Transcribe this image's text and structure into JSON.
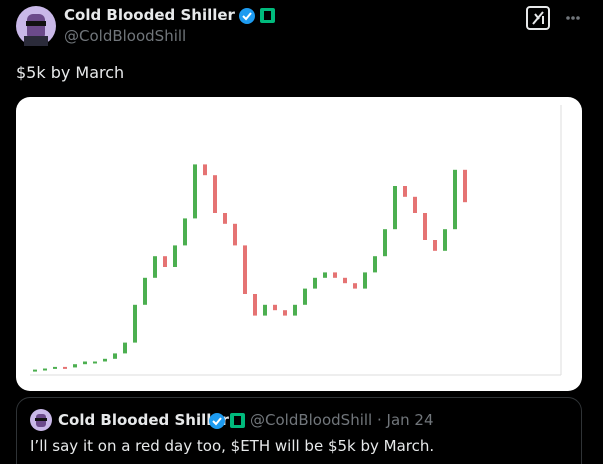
{
  "tweet": {
    "author": "Cold Blooded Shiller",
    "handle": "@ColdBloodShill",
    "text": "$5k by March",
    "embedded_chart": {
      "type": "bar",
      "values": [
        100,
        120,
        150,
        140,
        200,
        250,
        250,
        300,
        400,
        600,
        1300,
        1800,
        2200,
        2000,
        2400,
        2900,
        3900,
        3700,
        3000,
        2800,
        2400,
        1500,
        1100,
        1300,
        1200,
        1100,
        1300,
        1600,
        1800,
        1900,
        1800,
        1700,
        1600,
        1900,
        2200,
        2700,
        3500,
        3300,
        3000,
        2500,
        2300,
        2700,
        3800,
        3200
      ]
    },
    "quote": {
      "author": "Cold Blooded Shiller",
      "handle": "@ColdBloodShill",
      "date": "· Jan 24",
      "text": "I’ll say it on a red day too, $ETH will be $5k by March."
    }
  }
}
